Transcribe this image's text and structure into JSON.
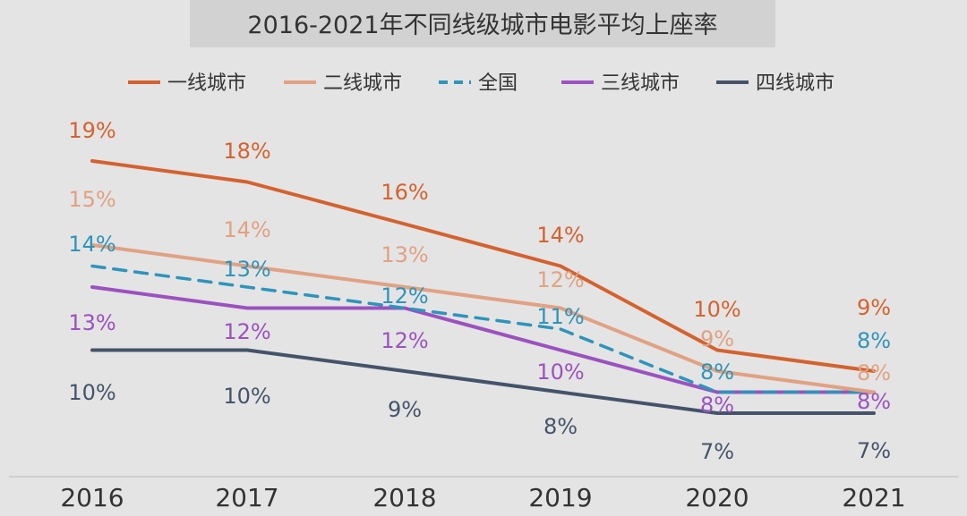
{
  "chart_data": {
    "type": "line",
    "title": "2016-2021年不同线级城市电影平均上座率",
    "xlabel": "",
    "ylabel": "",
    "categories": [
      "2016",
      "2017",
      "2018",
      "2019",
      "2020",
      "2021"
    ],
    "ylim": [
      5,
      21
    ],
    "grid": false,
    "legend_position": "top",
    "series": [
      {
        "name": "一线城市",
        "values": [
          19,
          18,
          16,
          14,
          10,
          9
        ],
        "labels": [
          "19%",
          "18%",
          "16%",
          "14%",
          "10%",
          "9%"
        ],
        "color": "#d4622f",
        "dashed": false
      },
      {
        "name": "二线城市",
        "values": [
          15,
          14,
          13,
          12,
          9,
          8
        ],
        "labels": [
          "15%",
          "14%",
          "13%",
          "12%",
          "9%",
          "8%"
        ],
        "color": "#e0a283",
        "dashed": false
      },
      {
        "name": "全国",
        "values": [
          14,
          13,
          12,
          11,
          8,
          8
        ],
        "labels": [
          "14%",
          "13%",
          "12%",
          "11%",
          "8%",
          "8%"
        ],
        "color": "#2e94bb",
        "dashed": true
      },
      {
        "name": "三线城市",
        "values": [
          13,
          12,
          12,
          10,
          8,
          8
        ],
        "labels": [
          "13%",
          "12%",
          "12%",
          "10%",
          "8%",
          "8%"
        ],
        "color": "#9b52bf",
        "dashed": false
      },
      {
        "name": "四线城市",
        "values": [
          10,
          10,
          9,
          8,
          7,
          7
        ],
        "labels": [
          "10%",
          "10%",
          "9%",
          "8%",
          "7%",
          "7%"
        ],
        "color": "#45536a",
        "dashed": false
      }
    ]
  }
}
